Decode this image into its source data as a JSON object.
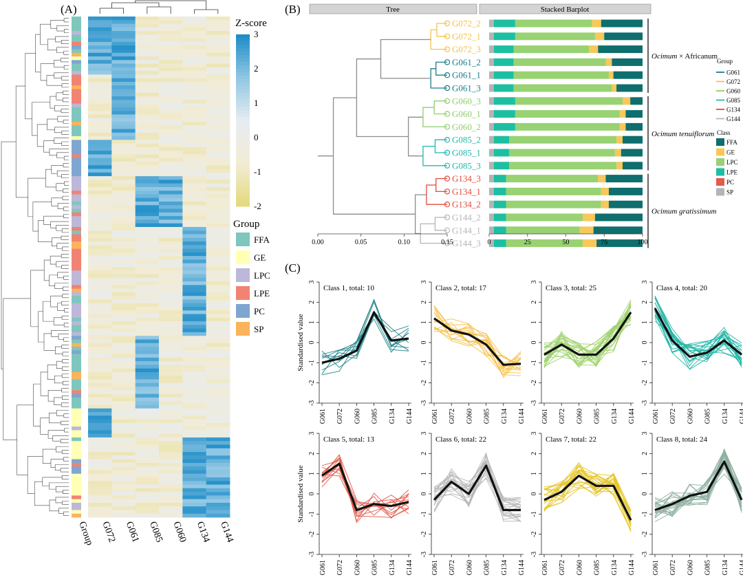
{
  "panels": {
    "a": "(A)",
    "b": "(B)",
    "c": "(C)"
  },
  "chart_data": [
    {
      "type": "heatmap",
      "panel": "(A)",
      "columns": [
        "G072",
        "G061",
        "G085",
        "G060",
        "G134",
        "G144"
      ],
      "row_annotation_label": "Group",
      "colorbar": {
        "title": "Z-score",
        "ticks": [
          3,
          2,
          1,
          0,
          -1,
          -2
        ],
        "range": [
          -2,
          3
        ],
        "colors": [
          "#e3d97a",
          "#f2ecd6",
          "#e7ecf1",
          "#8fc6e4",
          "#1a8bc6"
        ]
      },
      "legend": {
        "title": "Group",
        "items": [
          {
            "label": "FFA",
            "color": "#7fc7bd"
          },
          {
            "label": "GE",
            "color": "#ffffb5"
          },
          {
            "label": "LPC",
            "color": "#bdb7d9"
          },
          {
            "label": "LPE",
            "color": "#f18372"
          },
          {
            "label": "PC",
            "color": "#7ea6d0"
          },
          {
            "label": "SP",
            "color": "#fbb35c"
          }
        ]
      },
      "blocks": [
        {
          "rows": 16,
          "high": [
            "G072",
            "G061"
          ],
          "group": "FFA"
        },
        {
          "rows": 8,
          "high": [
            "G061"
          ],
          "group": "LPE"
        },
        {
          "rows": 10,
          "high": [
            "G061"
          ],
          "group": "FFA"
        },
        {
          "rows": 10,
          "high": [
            "G072"
          ],
          "group": "PC"
        },
        {
          "rows": 14,
          "high": [
            "G085",
            "G060"
          ],
          "group": "LPC"
        },
        {
          "rows": 12,
          "high": [
            "G134"
          ],
          "group": "LPE"
        },
        {
          "rows": 18,
          "high": [
            "G134"
          ],
          "group": "LPC"
        },
        {
          "rows": 20,
          "high": [
            "G085"
          ],
          "group": "FFA"
        },
        {
          "rows": 8,
          "high": [
            "G072"
          ],
          "group": "GE"
        },
        {
          "rows": 22,
          "high": [
            "G144",
            "G134"
          ],
          "group": "GE"
        }
      ]
    },
    {
      "type": "tree",
      "panel": "(B)",
      "headers": {
        "tree": "Tree",
        "bar": "Stacked Barplot"
      },
      "tree_axis": [
        0.0,
        0.05,
        0.1,
        0.15
      ],
      "tree_axis_labels": [
        "0.00",
        "0.05",
        "0.10",
        "0.15"
      ]
    },
    {
      "type": "bar",
      "panel": "(B)",
      "stacked": true,
      "orientation": "horizontal",
      "categories": [
        "G072_2",
        "G072_1",
        "G072_3",
        "G061_2",
        "G061_1",
        "G061_3",
        "G060_3",
        "G060_1",
        "G060_2",
        "G085_2",
        "G085_1",
        "G085_3",
        "G134_3",
        "G134_1",
        "G134_2",
        "G144_2",
        "G144_1",
        "G144_3"
      ],
      "category_groups": [
        "G072",
        "G072",
        "G072",
        "G061",
        "G061",
        "G061",
        "G060",
        "G060",
        "G060",
        "G085",
        "G085",
        "G085",
        "G134",
        "G134",
        "G134",
        "G144",
        "G144",
        "G144"
      ],
      "xlim": [
        0,
        100
      ],
      "xticks": [
        "0",
        "25",
        "50",
        "75",
        "100"
      ],
      "class_order": [
        "SP",
        "LPE",
        "LPC",
        "GE",
        "FFA"
      ],
      "series": [
        {
          "name": "SP",
          "values": [
            3,
            3,
            3,
            3,
            3,
            3,
            3,
            3,
            3,
            3,
            3,
            3,
            3,
            3,
            3,
            3,
            3,
            3
          ]
        },
        {
          "name": "LPE",
          "values": [
            14,
            14,
            13,
            13,
            13,
            13,
            14,
            14,
            14,
            10,
            10,
            10,
            8,
            8,
            8,
            8,
            8,
            8
          ]
        },
        {
          "name": "LPC",
          "values": [
            50,
            52,
            49,
            60,
            62,
            64,
            70,
            68,
            68,
            70,
            69,
            70,
            60,
            62,
            62,
            50,
            48,
            50
          ]
        },
        {
          "name": "GE",
          "values": [
            6,
            6,
            6,
            4,
            3,
            3,
            5,
            4,
            4,
            4,
            4,
            4,
            5,
            5,
            5,
            8,
            9,
            9
          ]
        },
        {
          "name": "FFA",
          "values": [
            27,
            25,
            29,
            20,
            19,
            17,
            8,
            11,
            11,
            13,
            14,
            13,
            24,
            22,
            22,
            31,
            32,
            30
          ]
        }
      ],
      "species": [
        {
          "name": "Ocimum",
          "suffix": " × Africanum",
          "rows": [
            0,
            5
          ]
        },
        {
          "name": "Ocimum tenuiflorum",
          "suffix": "",
          "rows": [
            6,
            11
          ]
        },
        {
          "name": "Ocimum gratissimum",
          "suffix": "",
          "rows": [
            12,
            17
          ]
        }
      ],
      "group_legend": {
        "title": "Group",
        "items": [
          {
            "label": "G061",
            "color": "#1a7d87"
          },
          {
            "label": "G072",
            "color": "#f4c24a"
          },
          {
            "label": "G060",
            "color": "#8fcf6a"
          },
          {
            "label": "G085",
            "color": "#1db9ad"
          },
          {
            "label": "G134",
            "color": "#e24b3b"
          },
          {
            "label": "G144",
            "color": "#b5b5b5"
          }
        ]
      },
      "class_legend": {
        "title": "Class",
        "items": [
          {
            "label": "FFA",
            "color": "#0f6e6e"
          },
          {
            "label": "GE",
            "color": "#f7c85a"
          },
          {
            "label": "LPC",
            "color": "#98d272"
          },
          {
            "label": "LPE",
            "color": "#1dbfa2"
          },
          {
            "label": "PC",
            "color": "#e25b4b"
          },
          {
            "label": "SP",
            "color": "#b4b4b4"
          }
        ]
      }
    },
    {
      "type": "line",
      "panel": "(C)",
      "x": [
        "G061",
        "G072",
        "G060",
        "G085",
        "G134",
        "G144"
      ],
      "ylabel": "Standardised value",
      "ylim": [
        -3,
        3
      ],
      "yticks": [
        "3",
        "2",
        "1",
        "0",
        "-1",
        "-2",
        "-3"
      ],
      "classes": [
        {
          "title": "Class 1, total: 10",
          "color": "#1b7f86",
          "count": 10,
          "mean": [
            -1.0,
            -0.8,
            -0.4,
            1.5,
            0.1,
            0.2
          ]
        },
        {
          "title": "Class 2, total: 17",
          "color": "#f5c04a",
          "count": 17,
          "mean": [
            1.2,
            0.6,
            0.4,
            -0.1,
            -1.1,
            -1.05
          ]
        },
        {
          "title": "Class 3, total: 25",
          "color": "#9ed16c",
          "count": 25,
          "mean": [
            -0.6,
            -0.1,
            -0.6,
            -0.6,
            0.2,
            1.5
          ]
        },
        {
          "title": "Class 4, total: 20",
          "color": "#1fb5a6",
          "count": 20,
          "mean": [
            1.7,
            0.1,
            -0.7,
            -0.5,
            0.1,
            -0.6
          ]
        },
        {
          "title": "Class 5, total: 13",
          "color": "#e05545",
          "count": 13,
          "mean": [
            0.9,
            1.5,
            -0.8,
            -0.5,
            -0.6,
            -0.4
          ]
        },
        {
          "title": "Class 6, total: 22",
          "color": "#b7b7b7",
          "count": 22,
          "mean": [
            -0.3,
            0.6,
            0.0,
            1.4,
            -0.8,
            -0.8
          ]
        },
        {
          "title": "Class 7, total: 22",
          "color": "#e4c425",
          "count": 22,
          "mean": [
            -0.3,
            0.1,
            0.9,
            0.4,
            0.4,
            -1.3
          ]
        },
        {
          "title": "Class 8, total: 24",
          "color": "#8fb0a2",
          "count": 24,
          "mean": [
            -0.8,
            -0.5,
            -0.1,
            0.1,
            1.6,
            -0.3
          ]
        }
      ]
    }
  ]
}
